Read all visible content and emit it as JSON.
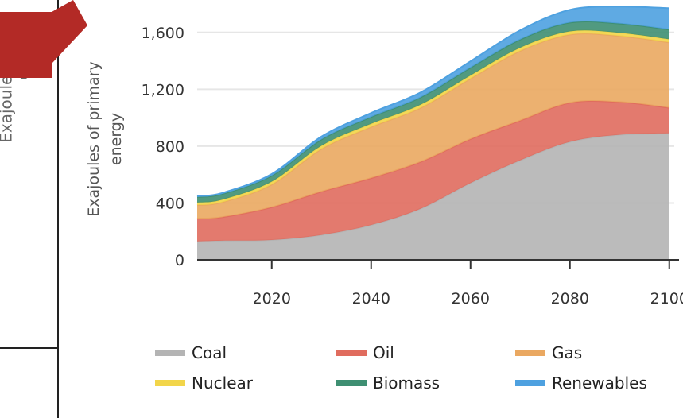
{
  "background_text": {
    "line1": "Exajoules",
    "line2": "ene"
  },
  "chart_data": {
    "type": "area",
    "stacked": true,
    "ylabel": "Exajoules of primary energy",
    "xlabel": "",
    "ylim": [
      0,
      1800
    ],
    "xlim": [
      2005,
      2101
    ],
    "yticks": [
      0,
      400,
      800,
      1200,
      1600
    ],
    "ytick_labels": [
      "0",
      "400",
      "800",
      "1,200",
      "1,600"
    ],
    "xticks": [
      2020,
      2040,
      2060,
      2080,
      2100
    ],
    "xtick_labels": [
      "2020",
      "2040",
      "2060",
      "2080",
      "2100"
    ],
    "x": [
      2005,
      2010,
      2020,
      2030,
      2040,
      2050,
      2060,
      2070,
      2080,
      2090,
      2100
    ],
    "series": [
      {
        "name": "Coal",
        "color": "#b4b4b4",
        "values": [
          130,
          135,
          140,
          175,
          245,
          360,
          540,
          700,
          830,
          880,
          890
        ]
      },
      {
        "name": "Oil",
        "color": "#e06c5e",
        "values": [
          160,
          165,
          230,
          305,
          330,
          330,
          310,
          280,
          275,
          230,
          180
        ]
      },
      {
        "name": "Gas",
        "color": "#eaa861",
        "values": [
          95,
          105,
          160,
          300,
          360,
          380,
          425,
          490,
          480,
          465,
          460
        ]
      },
      {
        "name": "Nuclear",
        "color": "#f2d54a",
        "values": [
          18,
          18,
          20,
          22,
          22,
          22,
          22,
          22,
          22,
          22,
          22
        ]
      },
      {
        "name": "Biomass",
        "color": "#3e8f72",
        "values": [
          40,
          40,
          42,
          45,
          48,
          52,
          55,
          58,
          62,
          65,
          68
        ]
      },
      {
        "name": "Renewables",
        "color": "#4ea1e0",
        "values": [
          5,
          7,
          12,
          20,
          28,
          35,
          45,
          65,
          90,
          120,
          150
        ]
      }
    ],
    "legend_position": "bottom",
    "grid": "horizontal"
  },
  "legend": [
    {
      "label": "Coal",
      "color": "#b4b4b4"
    },
    {
      "label": "Oil",
      "color": "#e06c5e"
    },
    {
      "label": "Gas",
      "color": "#eaa861"
    },
    {
      "label": "Nuclear",
      "color": "#f2d54a"
    },
    {
      "label": "Biomass",
      "color": "#3e8f72"
    },
    {
      "label": "Renewables",
      "color": "#4ea1e0"
    }
  ],
  "arrow": {
    "color": "#b32a26"
  }
}
